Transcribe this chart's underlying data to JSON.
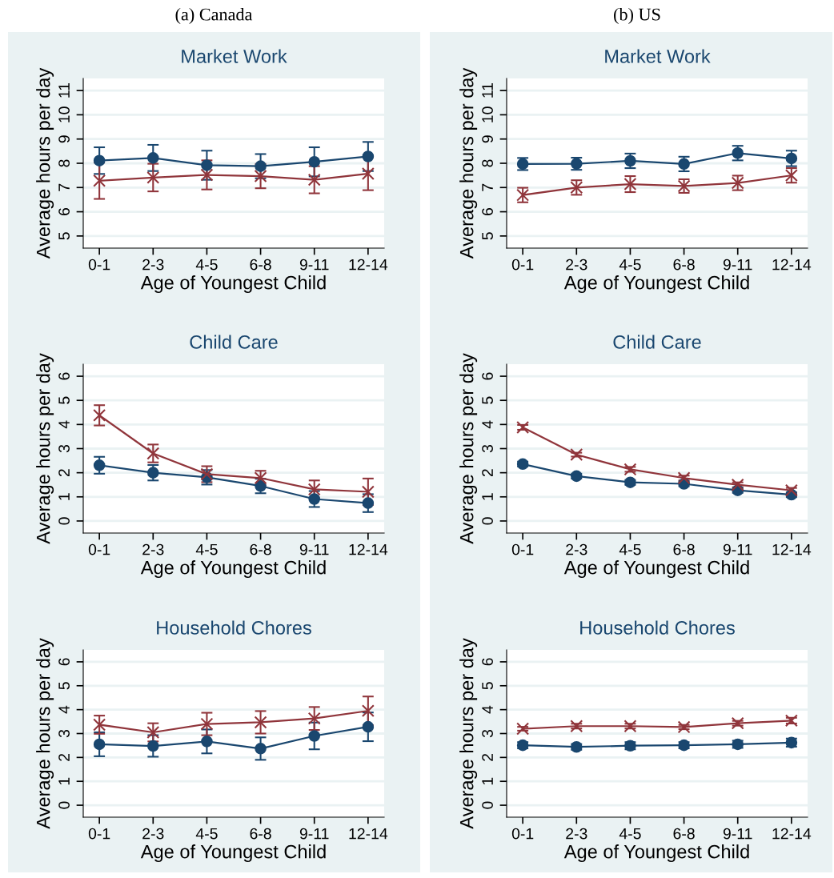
{
  "chart_data": [
    {
      "type": "line",
      "title": "Market Work",
      "annotations": [
        "(a) Canada"
      ],
      "xlabel": "Age of Youngest Child",
      "ylabel": "Average hours per day",
      "categories": [
        "0-1",
        "2-3",
        "4-5",
        "6-8",
        "9-11",
        "12-14"
      ],
      "ylim": [
        4.5,
        11.5
      ],
      "yticks": [
        5,
        6,
        7,
        8,
        9,
        10,
        11
      ],
      "grid": "y",
      "series": [
        {
          "color": "#1a476f",
          "marker": "circle",
          "values": [
            8.11,
            8.22,
            7.92,
            7.88,
            8.06,
            8.28
          ],
          "errors": [
            0.55,
            0.54,
            0.6,
            0.5,
            0.6,
            0.6
          ]
        },
        {
          "color": "#90353b",
          "marker": "cross",
          "values": [
            7.28,
            7.41,
            7.52,
            7.47,
            7.32,
            7.57
          ],
          "errors": [
            0.75,
            0.57,
            0.6,
            0.5,
            0.56,
            0.68
          ]
        }
      ]
    },
    {
      "type": "line",
      "title": "Market Work",
      "annotations": [
        "(b) US"
      ],
      "xlabel": "Age of Youngest Child",
      "ylabel": "Average hours per day",
      "categories": [
        "0-1",
        "2-3",
        "4-5",
        "6-8",
        "9-11",
        "12-14"
      ],
      "ylim": [
        4.5,
        11.5
      ],
      "yticks": [
        5,
        6,
        7,
        8,
        9,
        10,
        11
      ],
      "grid": "y",
      "series": [
        {
          "color": "#1a476f",
          "marker": "circle",
          "values": [
            7.97,
            7.98,
            8.1,
            7.97,
            8.42,
            8.2
          ],
          "errors": [
            0.25,
            0.25,
            0.3,
            0.3,
            0.3,
            0.32
          ]
        },
        {
          "color": "#90353b",
          "marker": "cross",
          "values": [
            6.69,
            7.0,
            7.14,
            7.06,
            7.19,
            7.5
          ],
          "errors": [
            0.3,
            0.3,
            0.33,
            0.28,
            0.3,
            0.3
          ]
        }
      ]
    },
    {
      "type": "line",
      "title": "Child Care",
      "xlabel": "Age of Youngest Child",
      "ylabel": "Average hours per day",
      "categories": [
        "0-1",
        "2-3",
        "4-5",
        "6-8",
        "9-11",
        "12-14"
      ],
      "ylim": [
        -0.5,
        6.5
      ],
      "yticks": [
        0,
        1,
        2,
        3,
        4,
        5,
        6
      ],
      "grid": "y",
      "series": [
        {
          "color": "#1a476f",
          "marker": "circle",
          "values": [
            2.31,
            2.0,
            1.81,
            1.45,
            0.91,
            0.74
          ],
          "errors": [
            0.35,
            0.32,
            0.3,
            0.3,
            0.33,
            0.37
          ]
        },
        {
          "color": "#90353b",
          "marker": "cross",
          "values": [
            4.38,
            2.8,
            1.94,
            1.78,
            1.31,
            1.21
          ],
          "errors": [
            0.42,
            0.37,
            0.33,
            0.3,
            0.37,
            0.55
          ]
        }
      ]
    },
    {
      "type": "line",
      "title": "Child Care",
      "xlabel": "Age of Youngest Child",
      "ylabel": "Average hours per day",
      "categories": [
        "0-1",
        "2-3",
        "4-5",
        "6-8",
        "9-11",
        "12-14"
      ],
      "ylim": [
        -0.5,
        6.5
      ],
      "yticks": [
        0,
        1,
        2,
        3,
        4,
        5,
        6
      ],
      "grid": "y",
      "series": [
        {
          "color": "#1a476f",
          "marker": "circle",
          "values": [
            2.36,
            1.86,
            1.6,
            1.54,
            1.27,
            1.09
          ],
          "errors": [
            0.1,
            0.1,
            0.1,
            0.1,
            0.1,
            0.1
          ]
        },
        {
          "color": "#90353b",
          "marker": "cross",
          "values": [
            3.88,
            2.75,
            2.14,
            1.78,
            1.5,
            1.27
          ],
          "errors": [
            0.1,
            0.08,
            0.1,
            0.1,
            0.1,
            0.1
          ]
        }
      ]
    },
    {
      "type": "line",
      "title": "Household Chores",
      "xlabel": "Age of Youngest Child",
      "ylabel": "Average hours per day",
      "categories": [
        "0-1",
        "2-3",
        "4-5",
        "6-8",
        "9-11",
        "12-14"
      ],
      "ylim": [
        -0.5,
        6.5
      ],
      "yticks": [
        0,
        1,
        2,
        3,
        4,
        5,
        6
      ],
      "grid": "y",
      "series": [
        {
          "color": "#1a476f",
          "marker": "circle",
          "values": [
            2.55,
            2.48,
            2.67,
            2.37,
            2.9,
            3.28
          ],
          "errors": [
            0.5,
            0.45,
            0.5,
            0.47,
            0.56,
            0.6
          ]
        },
        {
          "color": "#90353b",
          "marker": "cross",
          "values": [
            3.37,
            3.05,
            3.4,
            3.47,
            3.63,
            3.95
          ],
          "errors": [
            0.38,
            0.38,
            0.47,
            0.47,
            0.48,
            0.6
          ]
        }
      ]
    },
    {
      "type": "line",
      "title": "Household Chores",
      "xlabel": "Age of Youngest Child",
      "ylabel": "Average hours per day",
      "categories": [
        "0-1",
        "2-3",
        "4-5",
        "6-8",
        "9-11",
        "12-14"
      ],
      "ylim": [
        -0.5,
        6.5
      ],
      "yticks": [
        0,
        1,
        2,
        3,
        4,
        5,
        6
      ],
      "grid": "y",
      "series": [
        {
          "color": "#1a476f",
          "marker": "circle",
          "values": [
            2.51,
            2.44,
            2.49,
            2.51,
            2.55,
            2.62
          ],
          "errors": [
            0.13,
            0.12,
            0.15,
            0.13,
            0.15,
            0.17
          ]
        },
        {
          "color": "#90353b",
          "marker": "cross",
          "values": [
            3.2,
            3.31,
            3.31,
            3.27,
            3.43,
            3.54
          ],
          "errors": [
            0.08,
            0.1,
            0.1,
            0.09,
            0.1,
            0.12
          ]
        }
      ]
    }
  ]
}
